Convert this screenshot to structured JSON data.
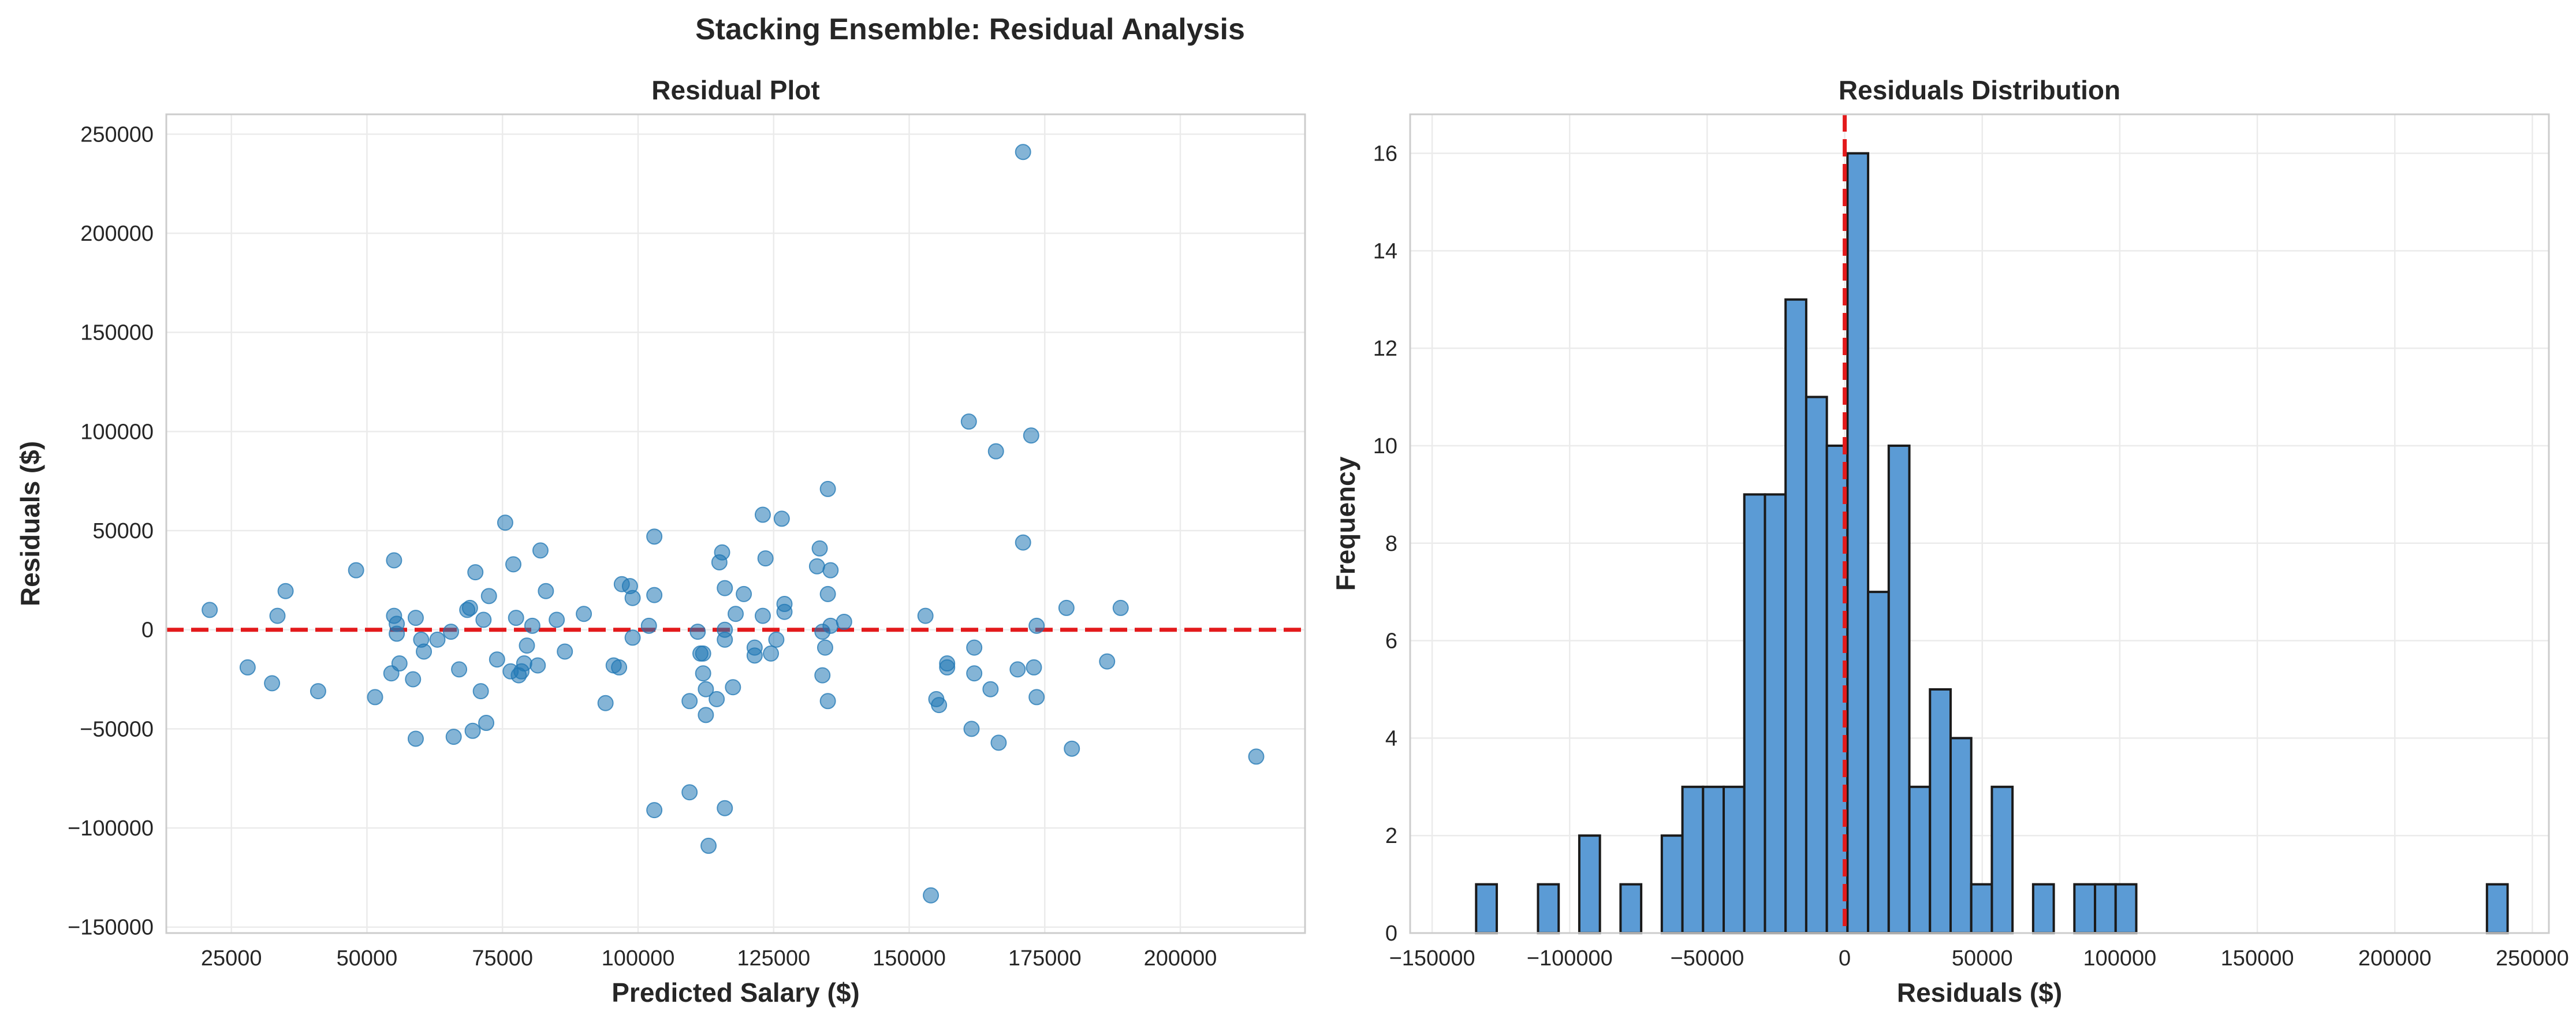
{
  "figure_title": "Stacking Ensemble: Residual Analysis",
  "chart_data": [
    {
      "type": "scatter",
      "title": "Residual Plot",
      "xlabel": "Predicted Salary ($)",
      "ylabel": "Residuals ($)",
      "xlim": [
        13000,
        223000
      ],
      "ylim": [
        -153000,
        260000
      ],
      "xticks": [
        25000,
        50000,
        75000,
        100000,
        125000,
        150000,
        175000,
        200000
      ],
      "xtick_labels": [
        "25000",
        "50000",
        "75000",
        "100000",
        "125000",
        "150000",
        "175000",
        "200000"
      ],
      "yticks": [
        -150000,
        -100000,
        -50000,
        0,
        50000,
        100000,
        150000,
        200000,
        250000
      ],
      "ytick_labels": [
        "−150000",
        "−100000",
        "−50000",
        "0",
        "50000",
        "100000",
        "150000",
        "200000",
        "250000"
      ],
      "grid": true,
      "point_color": "#1f77b4",
      "reference_line": {
        "y": 0,
        "color": "#e31a1c",
        "style": "dashed"
      },
      "points": [
        [
          21000,
          10000
        ],
        [
          28000,
          -19000
        ],
        [
          32500,
          -27000
        ],
        [
          33500,
          7000
        ],
        [
          35000,
          19500
        ],
        [
          41000,
          -31000
        ],
        [
          48000,
          30000
        ],
        [
          51500,
          -34000
        ],
        [
          54500,
          -22000
        ],
        [
          55000,
          35000
        ],
        [
          55000,
          7000
        ],
        [
          55500,
          -2000
        ],
        [
          55500,
          3000
        ],
        [
          56000,
          -17000
        ],
        [
          58500,
          -25000
        ],
        [
          59000,
          6000
        ],
        [
          59000,
          -55000
        ],
        [
          60000,
          -5000
        ],
        [
          60500,
          -11000
        ],
        [
          63000,
          -5000
        ],
        [
          65500,
          -1000
        ],
        [
          66000,
          -54000
        ],
        [
          67000,
          -20000
        ],
        [
          68500,
          10000
        ],
        [
          69000,
          11000
        ],
        [
          69500,
          -51000
        ],
        [
          70000,
          29000
        ],
        [
          71000,
          -31000
        ],
        [
          71500,
          5000
        ],
        [
          72000,
          -47000
        ],
        [
          72500,
          17000
        ],
        [
          74000,
          -15000
        ],
        [
          75500,
          54000
        ],
        [
          76500,
          -21000
        ],
        [
          77000,
          33000
        ],
        [
          77500,
          6000
        ],
        [
          78000,
          -23000
        ],
        [
          78500,
          -21000
        ],
        [
          79000,
          -17000
        ],
        [
          79500,
          -8000
        ],
        [
          80500,
          2000
        ],
        [
          81500,
          -18000
        ],
        [
          82000,
          40000
        ],
        [
          83000,
          19500
        ],
        [
          85000,
          5000
        ],
        [
          86500,
          -11000
        ],
        [
          90000,
          8000
        ],
        [
          94000,
          -37000
        ],
        [
          95500,
          -18000
        ],
        [
          96500,
          -19000
        ],
        [
          97000,
          23000
        ],
        [
          98500,
          22000
        ],
        [
          99000,
          -4000
        ],
        [
          99000,
          16000
        ],
        [
          102000,
          2000
        ],
        [
          103000,
          47000
        ],
        [
          103000,
          17500
        ],
        [
          103000,
          -91000
        ],
        [
          109500,
          -36000
        ],
        [
          109500,
          -82000
        ],
        [
          111000,
          -1000
        ],
        [
          111500,
          -12000
        ],
        [
          112000,
          -12000
        ],
        [
          112000,
          -22000
        ],
        [
          112500,
          -30000
        ],
        [
          112500,
          -43000
        ],
        [
          113000,
          -109000
        ],
        [
          114500,
          -35000
        ],
        [
          115000,
          34000
        ],
        [
          115500,
          39000
        ],
        [
          116000,
          21000
        ],
        [
          116000,
          0
        ],
        [
          116000,
          -5000
        ],
        [
          116000,
          -90000
        ],
        [
          117500,
          -29000
        ],
        [
          118000,
          8000
        ],
        [
          119500,
          18000
        ],
        [
          121500,
          -9000
        ],
        [
          121500,
          -13000
        ],
        [
          123000,
          58000
        ],
        [
          123000,
          7000
        ],
        [
          123500,
          36000
        ],
        [
          124500,
          -12000
        ],
        [
          125500,
          -5000
        ],
        [
          126500,
          56000
        ],
        [
          127000,
          9000
        ],
        [
          127000,
          13000
        ],
        [
          133000,
          32000
        ],
        [
          133500,
          41000
        ],
        [
          134000,
          -23000
        ],
        [
          134000,
          -1000
        ],
        [
          134500,
          -9000
        ],
        [
          135000,
          71000
        ],
        [
          135000,
          18000
        ],
        [
          135000,
          -36000
        ],
        [
          135500,
          2000
        ],
        [
          135500,
          30000
        ],
        [
          138000,
          4000
        ],
        [
          153000,
          7000
        ],
        [
          154000,
          -134000
        ],
        [
          155000,
          -35000
        ],
        [
          155500,
          -38000
        ],
        [
          157000,
          -17000
        ],
        [
          157000,
          -19000
        ],
        [
          161000,
          105000
        ],
        [
          161500,
          -50000
        ],
        [
          162000,
          -22000
        ],
        [
          162000,
          -9000
        ],
        [
          165000,
          -30000
        ],
        [
          166000,
          90000
        ],
        [
          166500,
          -57000
        ],
        [
          170000,
          -20000
        ],
        [
          171000,
          241000
        ],
        [
          171000,
          44000
        ],
        [
          172500,
          98000
        ],
        [
          173000,
          -19000
        ],
        [
          173500,
          2000
        ],
        [
          173500,
          -34000
        ],
        [
          179000,
          11000
        ],
        [
          180000,
          -60000
        ],
        [
          186500,
          -16000
        ],
        [
          189000,
          11000
        ],
        [
          214000,
          -64000
        ]
      ]
    },
    {
      "type": "bar",
      "subtype": "histogram",
      "title": "Residuals Distribution",
      "xlabel": "Residuals ($)",
      "ylabel": "Frequency",
      "xlim": [
        -158000,
        256000
      ],
      "ylim": [
        0,
        16.8
      ],
      "xticks": [
        -150000,
        -100000,
        -50000,
        0,
        50000,
        100000,
        150000,
        200000,
        250000
      ],
      "xtick_labels": [
        "−150000",
        "−100000",
        "−50000",
        "0",
        "50000",
        "100000",
        "150000",
        "200000",
        "250000"
      ],
      "yticks": [
        0,
        2,
        4,
        6,
        8,
        10,
        12,
        14,
        16
      ],
      "ytick_labels": [
        "0",
        "2",
        "4",
        "6",
        "8",
        "10",
        "12",
        "14",
        "16"
      ],
      "grid": true,
      "bar_color": "#5b9bd5",
      "edge_color": "#1a1a1a",
      "reference_line": {
        "x": 0,
        "color": "#e31a1c",
        "style": "dashed"
      },
      "bin_start": -134000,
      "bin_width": 7500,
      "counts": [
        1,
        0,
        0,
        1,
        0,
        2,
        0,
        1,
        0,
        2,
        3,
        3,
        3,
        9,
        9,
        13,
        11,
        10,
        16,
        7,
        10,
        3,
        5,
        4,
        1,
        3,
        0,
        1,
        0,
        1,
        1,
        1,
        0,
        0,
        0,
        0,
        0,
        0,
        0,
        0,
        0,
        0,
        0,
        0,
        0,
        0,
        0,
        0,
        0,
        1
      ]
    }
  ]
}
